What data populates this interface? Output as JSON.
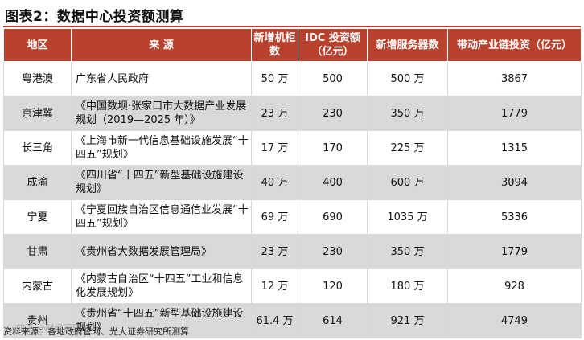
{
  "title": "图表2：数据中心投资额测算",
  "headers": [
    "地区",
    "来 源",
    "新增机柜数",
    "IDC 投资额（亿元）",
    "新增服务器数",
    "带动产业链投资（亿元）"
  ],
  "rows": [
    {
      "region": "粤港澳",
      "source": "广东省人民政府",
      "cabinets": "50 万",
      "idc": "500",
      "servers": "500 万",
      "chain": "3867"
    },
    {
      "region": "京津冀",
      "source": "《中国数坝·张家口市大数据产业发展规划（2019—2025 年）》",
      "cabinets": "23 万",
      "idc": "230",
      "servers": "350 万",
      "chain": "1779"
    },
    {
      "region": "长三角",
      "source": "《上海市新一代信息基础设施发展“十四五”规划》",
      "cabinets": "17 万",
      "idc": "170",
      "servers": "225 万",
      "chain": "1315"
    },
    {
      "region": "成渝",
      "source": "《四川省“十四五”新型基础设施建设规划》",
      "cabinets": "40 万",
      "idc": "400",
      "servers": "600 万",
      "chain": "3094"
    },
    {
      "region": "宁夏",
      "source": "《宁夏回族自治区信息通信业发展“十四五”规划》",
      "cabinets": "69 万",
      "idc": "690",
      "servers": "1035 万",
      "chain": "5336"
    },
    {
      "region": "甘肃",
      "source": "《贵州省大数据发展管理局》",
      "cabinets": "23 万",
      "idc": "230",
      "servers": "350 万",
      "chain": "1779"
    },
    {
      "region": "内蒙古",
      "source": "《内蒙古自治区“十四五”工业和信息化发展规划》",
      "cabinets": "12 万",
      "idc": "120",
      "servers": "180 万",
      "chain": "928"
    },
    {
      "region": "贵州",
      "source": "《贵州省“十四五”新型基础设施建设规划》",
      "cabinets": "61.4 万",
      "idc": "614",
      "servers": "921 万",
      "chain": "4749"
    }
  ],
  "footer": "资料来源：各地政府官网、光大证券研究所测算",
  "watermark": "知乎 @财经视界",
  "colors": {
    "header_bg": "#b8422e",
    "alt_row_bg": "#d9d9d9",
    "rule": "#c0392b"
  }
}
